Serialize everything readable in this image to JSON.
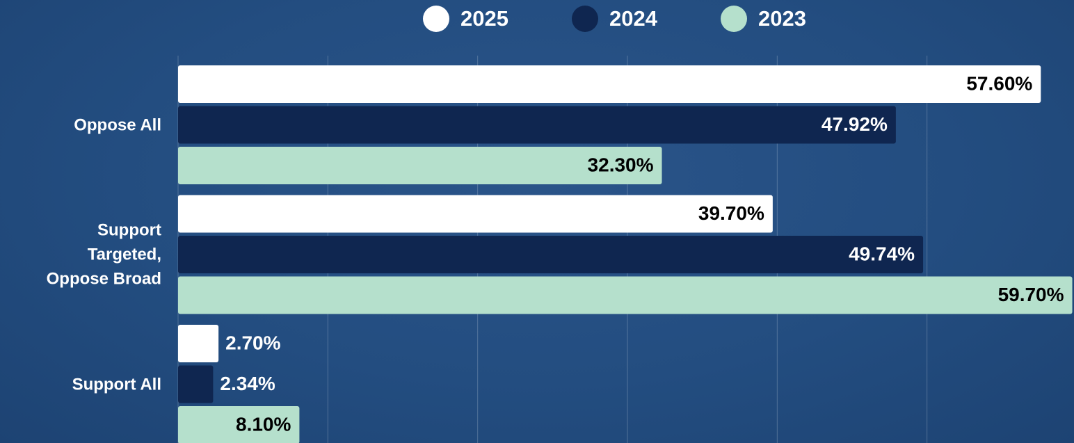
{
  "chart_data": {
    "type": "barh",
    "categories": [
      "Oppose All",
      "Support Targeted, Oppose Broad",
      "Support All"
    ],
    "series": [
      {
        "name": "2025",
        "color": "#ffffff",
        "values": [
          57.6,
          39.7,
          2.7
        ],
        "value_labels": [
          "57.60%",
          "39.70%",
          "2.70%"
        ]
      },
      {
        "name": "2024",
        "color": "#0f2650",
        "values": [
          47.92,
          49.74,
          2.34
        ],
        "value_labels": [
          "47.92%",
          "49.74%",
          "2.34%"
        ]
      },
      {
        "name": "2023",
        "color": "#b5e0cc",
        "values": [
          32.3,
          59.7,
          8.1
        ],
        "value_labels": [
          "32.30%",
          "59.70%",
          "8.10%"
        ]
      }
    ],
    "xlim": [
      0,
      60
    ],
    "xticks": [
      0,
      10,
      20,
      30,
      40,
      50
    ],
    "grid": true,
    "legend": "top"
  }
}
